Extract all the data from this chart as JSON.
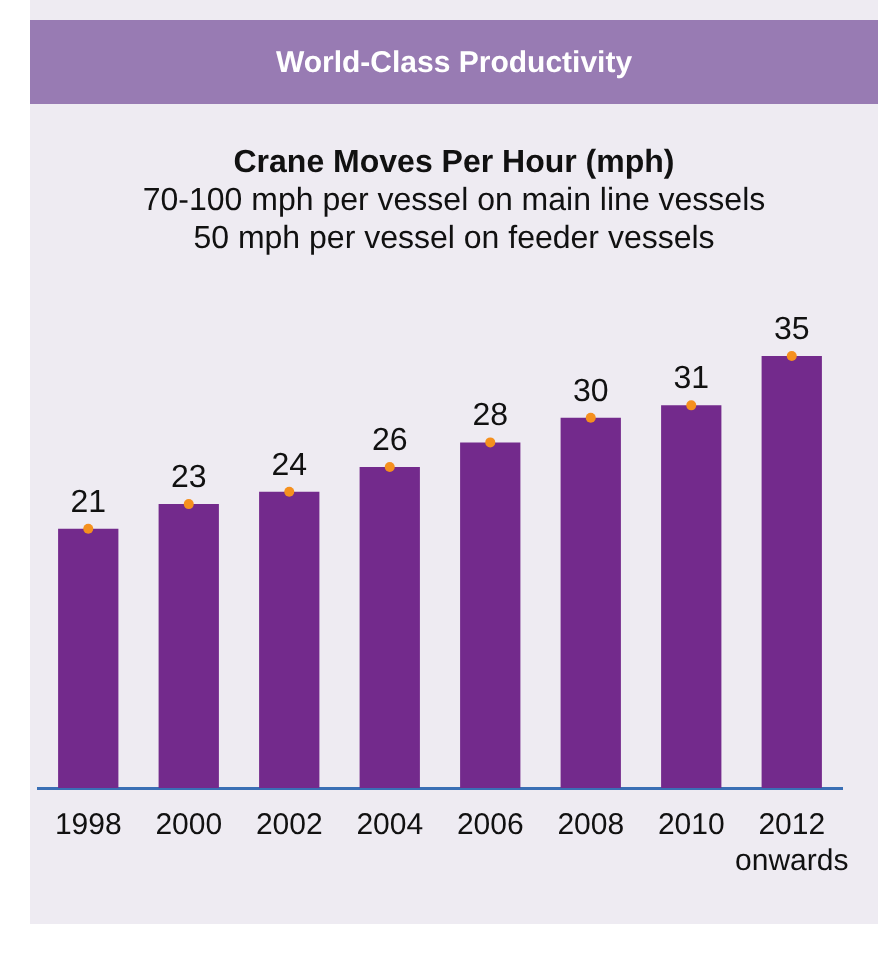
{
  "chart_data": {
    "type": "bar",
    "title": "World-Class Productivity",
    "subtitle": "Crane Moves Per Hour (mph)\n70-100 mph per vessel on main line vessels\n50 mph per vessel on feeder vessels",
    "categories": [
      "1998",
      "2000",
      "2002",
      "2004",
      "2006",
      "2008",
      "2010",
      "2012\nonwards"
    ],
    "series": [
      {
        "color": "#732a8c",
        "values": [
          21,
          23,
          24,
          26,
          28,
          30,
          31,
          35
        ],
        "value_labels": [
          "21",
          "23",
          "24",
          "26",
          "28",
          "30",
          "31",
          "35"
        ]
      },
      {
        "type": "scatter",
        "color": "#f5901e",
        "values": [
          21,
          23,
          24,
          26,
          28,
          30,
          31,
          35
        ]
      }
    ],
    "grid": false,
    "legend": false,
    "marker": "circle"
  }
}
